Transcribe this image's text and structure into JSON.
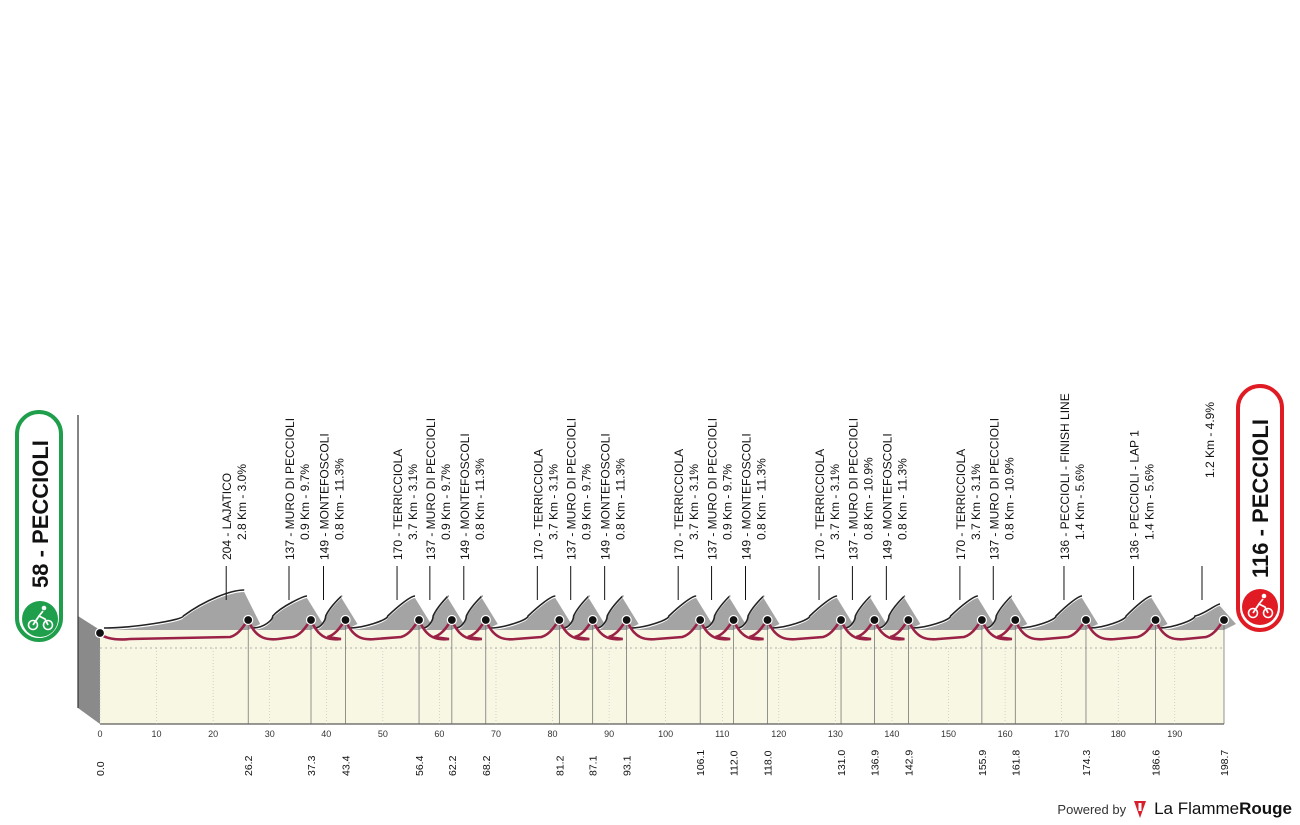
{
  "chart_data": {
    "type": "area",
    "title": "",
    "xlabel": "",
    "ylabel": "",
    "xlim": [
      0,
      198.7
    ],
    "x_ticks": [
      0,
      10,
      20,
      30,
      40,
      50,
      60,
      70,
      80,
      90,
      100,
      110,
      120,
      130,
      140,
      150,
      160,
      170,
      180,
      190
    ],
    "colors": {
      "fill": "#f7f7e4",
      "climb": "#9a9a9a",
      "profile": "#222222",
      "road": "#9b2247",
      "start": "#1f9e4b",
      "finish": "#e01b24"
    },
    "start": {
      "label": "58 - PECCIOLI",
      "km": "0.0",
      "icon": "cyclist-icon"
    },
    "finish": {
      "label": "116 - PECCIOLI",
      "km": "198.7",
      "icon": "cyclist-icon"
    },
    "markers": [
      {
        "km": "26.2",
        "climb": "204 - LAJATICO",
        "detail": "2.8 Km - 3.0%"
      },
      {
        "km": "37.3",
        "climb": "137 - MURO DI PECCIOLI",
        "detail": "0.9 Km - 9.7%"
      },
      {
        "km": "43.4",
        "climb": "149 - MONTEFOSCOLI",
        "detail": "0.8 Km - 11.3%"
      },
      {
        "km": "56.4",
        "climb": "170 - TERRICCIOLA",
        "detail": "3.7 Km - 3.1%"
      },
      {
        "km": "62.2",
        "climb": "137 - MURO DI PECCIOLI",
        "detail": "0.9 Km - 9.7%"
      },
      {
        "km": "68.2",
        "climb": "149 - MONTEFOSCOLI",
        "detail": "0.8 Km - 11.3%"
      },
      {
        "km": "81.2",
        "climb": "170 - TERRICCIOLA",
        "detail": "3.7 Km - 3.1%"
      },
      {
        "km": "87.1",
        "climb": "137 - MURO DI PECCIOLI",
        "detail": "0.9 Km - 9.7%"
      },
      {
        "km": "93.1",
        "climb": "149 - MONTEFOSCOLI",
        "detail": "0.8 Km - 11.3%"
      },
      {
        "km": "106.1",
        "climb": "170 - TERRICCIOLA",
        "detail": "3.7 Km - 3.1%"
      },
      {
        "km": "112.0",
        "climb": "137 - MURO DI PECCIOLI",
        "detail": "0.9 Km - 9.7%"
      },
      {
        "km": "118.0",
        "climb": "149 - MONTEFOSCOLI",
        "detail": "0.8 Km - 11.3%"
      },
      {
        "km": "131.0",
        "climb": "170 - TERRICCIOLA",
        "detail": "3.7 Km - 3.1%"
      },
      {
        "km": "136.9",
        "climb": "137 - MURO DI PECCIOLI",
        "detail": "0.8 Km - 10.9%"
      },
      {
        "km": "142.9",
        "climb": "149 - MONTEFOSCOLI",
        "detail": "0.8 Km - 11.3%"
      },
      {
        "km": "155.9",
        "climb": "170 - TERRICCIOLA",
        "detail": "3.7 Km - 3.1%"
      },
      {
        "km": "161.8",
        "climb": "137 - MURO DI PECCIOLI",
        "detail": "0.8 Km - 10.9%"
      },
      {
        "km": "174.3",
        "climb": "136 - PECCIOLI - FINISH LINE",
        "detail": "1.4 Km - 5.6%"
      },
      {
        "km": "186.6",
        "climb": "136 - PECCIOLI - LAP 1",
        "detail": "1.4 Km - 5.6%"
      },
      {
        "km": "198.7",
        "climb": "",
        "detail": "1.2 Km - 4.9%"
      }
    ]
  },
  "footer": {
    "powered_by": "Powered by",
    "brand_light": "La Flamme",
    "brand_bold": "Rouge",
    "brand_icon": "flame-icon"
  }
}
